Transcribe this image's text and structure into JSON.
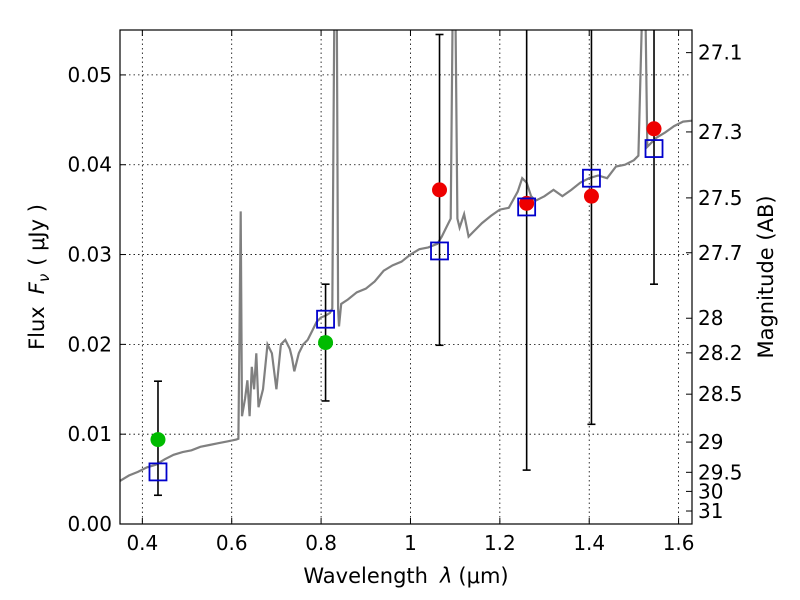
{
  "chart_data": {
    "type": "scatter",
    "xlabel_text": "Wavelength",
    "xlabel_symbol": "λ",
    "xlabel_unit": "(μm)",
    "ylabel_text": "Flux",
    "ylabel_symbol": "F",
    "ylabel_subscript": "ν",
    "ylabel_unit": "( μJy )",
    "y2label": "Magnitude (AB)",
    "xlim": [
      0.35,
      1.63
    ],
    "ylim": [
      0.0,
      0.055
    ],
    "grid": true,
    "x_ticks": [
      {
        "value": 0.4,
        "label": "0.4"
      },
      {
        "value": 0.6,
        "label": "0.6"
      },
      {
        "value": 0.8,
        "label": "0.8"
      },
      {
        "value": 1.0,
        "label": "1"
      },
      {
        "value": 1.2,
        "label": "1.2"
      },
      {
        "value": 1.4,
        "label": "1.4"
      },
      {
        "value": 1.6,
        "label": "1.6"
      }
    ],
    "y_ticks": [
      {
        "value": 0.0,
        "label": "0.00"
      },
      {
        "value": 0.01,
        "label": "0.01"
      },
      {
        "value": 0.02,
        "label": "0.02"
      },
      {
        "value": 0.03,
        "label": "0.03"
      },
      {
        "value": 0.04,
        "label": "0.04"
      },
      {
        "value": 0.05,
        "label": "0.05"
      }
    ],
    "y2_ticks": [
      {
        "value": 27.1,
        "label": "27.1"
      },
      {
        "value": 27.3,
        "label": "27.3"
      },
      {
        "value": 27.5,
        "label": "27.5"
      },
      {
        "value": 27.7,
        "label": "27.7"
      },
      {
        "value": 28.0,
        "label": "28"
      },
      {
        "value": 28.2,
        "label": "28.2"
      },
      {
        "value": 28.5,
        "label": "28.5"
      },
      {
        "value": 29.0,
        "label": "29"
      },
      {
        "value": 29.5,
        "label": "29.5"
      },
      {
        "value": 30.0,
        "label": "30"
      },
      {
        "value": 31.0,
        "label": "31"
      }
    ],
    "spectrum": {
      "color": "#808080",
      "points": [
        [
          0.35,
          0.0048
        ],
        [
          0.37,
          0.0054
        ],
        [
          0.39,
          0.0058
        ],
        [
          0.41,
          0.0063
        ],
        [
          0.43,
          0.0066
        ],
        [
          0.45,
          0.0072
        ],
        [
          0.47,
          0.0077
        ],
        [
          0.49,
          0.008
        ],
        [
          0.51,
          0.0082
        ],
        [
          0.53,
          0.0086
        ],
        [
          0.55,
          0.0088
        ],
        [
          0.57,
          0.009
        ],
        [
          0.59,
          0.0092
        ],
        [
          0.61,
          0.0094
        ],
        [
          0.615,
          0.0095
        ],
        [
          0.62,
          0.0348
        ],
        [
          0.623,
          0.012
        ],
        [
          0.63,
          0.014
        ],
        [
          0.635,
          0.016
        ],
        [
          0.64,
          0.012
        ],
        [
          0.645,
          0.0175
        ],
        [
          0.65,
          0.015
        ],
        [
          0.655,
          0.019
        ],
        [
          0.66,
          0.013
        ],
        [
          0.67,
          0.015
        ],
        [
          0.68,
          0.02
        ],
        [
          0.69,
          0.019
        ],
        [
          0.7,
          0.015
        ],
        [
          0.71,
          0.02
        ],
        [
          0.72,
          0.0205
        ],
        [
          0.73,
          0.0195
        ],
        [
          0.735,
          0.0185
        ],
        [
          0.74,
          0.017
        ],
        [
          0.75,
          0.019
        ],
        [
          0.76,
          0.02
        ],
        [
          0.77,
          0.0205
        ],
        [
          0.78,
          0.0215
        ],
        [
          0.79,
          0.0225
        ],
        [
          0.8,
          0.023
        ],
        [
          0.81,
          0.0232
        ],
        [
          0.82,
          0.0235
        ],
        [
          0.825,
          0.024
        ],
        [
          0.83,
          0.06
        ],
        [
          0.835,
          0.06
        ],
        [
          0.838,
          0.024
        ],
        [
          0.84,
          0.022
        ],
        [
          0.845,
          0.0245
        ],
        [
          0.86,
          0.025
        ],
        [
          0.88,
          0.0258
        ],
        [
          0.9,
          0.0262
        ],
        [
          0.92,
          0.027
        ],
        [
          0.94,
          0.0282
        ],
        [
          0.96,
          0.0288
        ],
        [
          0.98,
          0.0292
        ],
        [
          1.0,
          0.03
        ],
        [
          1.02,
          0.0306
        ],
        [
          1.04,
          0.0308
        ],
        [
          1.06,
          0.0312
        ],
        [
          1.07,
          0.032
        ],
        [
          1.08,
          0.033
        ],
        [
          1.09,
          0.034
        ],
        [
          1.095,
          0.06
        ],
        [
          1.1,
          0.06
        ],
        [
          1.105,
          0.034
        ],
        [
          1.11,
          0.033
        ],
        [
          1.12,
          0.0345
        ],
        [
          1.13,
          0.032
        ],
        [
          1.14,
          0.0325
        ],
        [
          1.16,
          0.0335
        ],
        [
          1.18,
          0.0343
        ],
        [
          1.2,
          0.035
        ],
        [
          1.22,
          0.0352
        ],
        [
          1.24,
          0.037
        ],
        [
          1.25,
          0.0385
        ],
        [
          1.26,
          0.038
        ],
        [
          1.27,
          0.0365
        ],
        [
          1.28,
          0.036
        ],
        [
          1.3,
          0.0365
        ],
        [
          1.32,
          0.0372
        ],
        [
          1.34,
          0.0365
        ],
        [
          1.36,
          0.0372
        ],
        [
          1.38,
          0.038
        ],
        [
          1.4,
          0.0385
        ],
        [
          1.42,
          0.0388
        ],
        [
          1.44,
          0.0385
        ],
        [
          1.46,
          0.0398
        ],
        [
          1.48,
          0.04
        ],
        [
          1.5,
          0.0405
        ],
        [
          1.51,
          0.041
        ],
        [
          1.52,
          0.06
        ],
        [
          1.525,
          0.06
        ],
        [
          1.53,
          0.042
        ],
        [
          1.55,
          0.043
        ],
        [
          1.57,
          0.0436
        ],
        [
          1.59,
          0.0443
        ],
        [
          1.61,
          0.0448
        ],
        [
          1.63,
          0.0449
        ]
      ]
    },
    "model_points": {
      "color": "#0000cc",
      "points": [
        [
          0.435,
          0.0058
        ],
        [
          0.81,
          0.0228
        ],
        [
          1.065,
          0.0304
        ],
        [
          1.26,
          0.0353
        ],
        [
          1.405,
          0.0385
        ],
        [
          1.545,
          0.0418
        ]
      ]
    },
    "observed_points": [
      {
        "x": 0.435,
        "y": 0.0094,
        "err_low": 0.0032,
        "err_high": 0.0159,
        "color": "#00bb00"
      },
      {
        "x": 0.81,
        "y": 0.0202,
        "err_low": 0.0137,
        "err_high": 0.0267,
        "color": "#00bb00"
      },
      {
        "x": 1.065,
        "y": 0.0372,
        "err_low": 0.0199,
        "err_high": 0.0545,
        "color": "#ee0000"
      },
      {
        "x": 1.26,
        "y": 0.0357,
        "err_low": 0.006,
        "err_high": 0.056,
        "color": "#ee0000"
      },
      {
        "x": 1.405,
        "y": 0.0365,
        "err_low": 0.0111,
        "err_high": 0.056,
        "color": "#ee0000"
      },
      {
        "x": 1.545,
        "y": 0.044,
        "err_low": 0.0267,
        "err_high": 0.056,
        "color": "#ee0000"
      }
    ]
  }
}
